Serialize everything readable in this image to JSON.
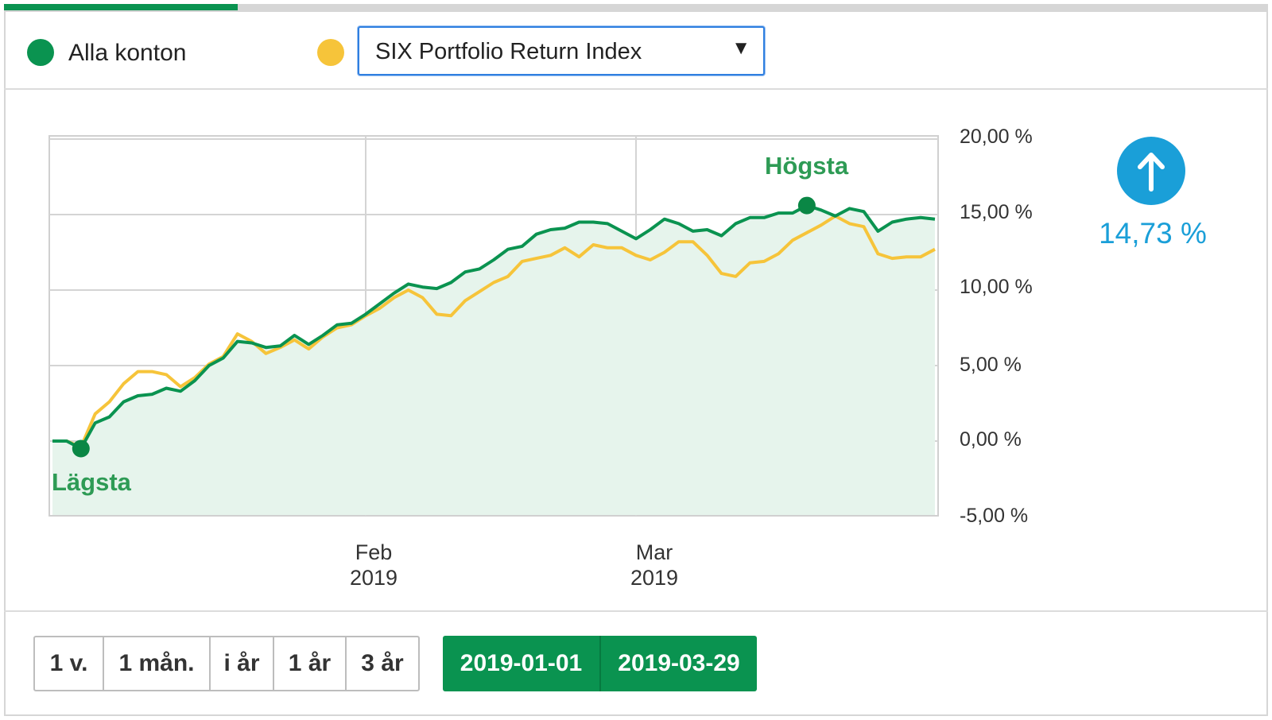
{
  "header": {
    "progress_fraction": 0.185,
    "legend": [
      {
        "label": "Alla konton",
        "color": "#0a9350"
      },
      {
        "label": "",
        "color": "#f6c43a"
      }
    ],
    "index_select": {
      "selected": "SIX Portfolio Return Index",
      "icon": "triangle-down-icon"
    }
  },
  "chart_data": {
    "type": "line",
    "x_ticks": [
      {
        "label_month": "Feb",
        "label_year": "2019",
        "index": 22
      },
      {
        "label_month": "Mar",
        "label_year": "2019",
        "index": 41
      }
    ],
    "y_ticks": [
      "20,00 %",
      "15,00 %",
      "10,00 %",
      "5,00 %",
      "0,00 %",
      "-5,00 %"
    ],
    "ylim": [
      -5,
      20
    ],
    "annotations": {
      "low_label": "Lägsta",
      "high_label": "Högsta"
    },
    "series": [
      {
        "name": "Alla konton",
        "color": "#0a9350",
        "values": [
          0.0,
          0.0,
          -0.5,
          1.2,
          1.6,
          2.6,
          3.0,
          3.1,
          3.5,
          3.3,
          4.0,
          5.0,
          5.5,
          6.6,
          6.5,
          6.2,
          6.3,
          7.0,
          6.4,
          7.0,
          7.7,
          7.8,
          8.4,
          9.1,
          9.8,
          10.4,
          10.2,
          10.1,
          10.5,
          11.2,
          11.4,
          12.0,
          12.7,
          12.9,
          13.7,
          14.0,
          14.1,
          14.5,
          14.5,
          14.4,
          13.9,
          13.4,
          14.0,
          14.7,
          14.4,
          13.9,
          14.0,
          13.6,
          14.4,
          14.8,
          14.8,
          15.1,
          15.1,
          15.6,
          15.3,
          14.9,
          15.4,
          15.2,
          13.9,
          14.5,
          14.7,
          14.8,
          14.7
        ]
      },
      {
        "name": "SIX Portfolio Return Index",
        "color": "#f6c43a",
        "values": [
          0.0,
          0.0,
          -0.4,
          1.8,
          2.6,
          3.8,
          4.6,
          4.6,
          4.4,
          3.6,
          4.2,
          5.1,
          5.6,
          7.1,
          6.6,
          5.8,
          6.2,
          6.7,
          6.1,
          6.9,
          7.5,
          7.7,
          8.3,
          8.8,
          9.5,
          10.0,
          9.5,
          8.4,
          8.3,
          9.3,
          9.9,
          10.5,
          10.9,
          11.9,
          12.1,
          12.3,
          12.8,
          12.2,
          13.0,
          12.8,
          12.8,
          12.3,
          12.0,
          12.5,
          13.2,
          13.2,
          12.3,
          11.1,
          10.9,
          11.8,
          11.9,
          12.4,
          13.3,
          13.8,
          14.3,
          14.9,
          14.4,
          14.2,
          12.4,
          12.1,
          12.2,
          12.2,
          12.7
        ]
      }
    ],
    "low_point": {
      "series": 0,
      "index": 2
    },
    "high_point": {
      "series": 0,
      "index": 53
    }
  },
  "summary": {
    "change_value": "14,73 %",
    "direction_icon": "arrow-up-icon"
  },
  "periods": [
    {
      "label": "1 v."
    },
    {
      "label": "1 mån."
    },
    {
      "label": "i år"
    },
    {
      "label": "1 år"
    },
    {
      "label": "3 år"
    }
  ],
  "dates": {
    "from": "2019-01-01",
    "to": "2019-03-29"
  }
}
